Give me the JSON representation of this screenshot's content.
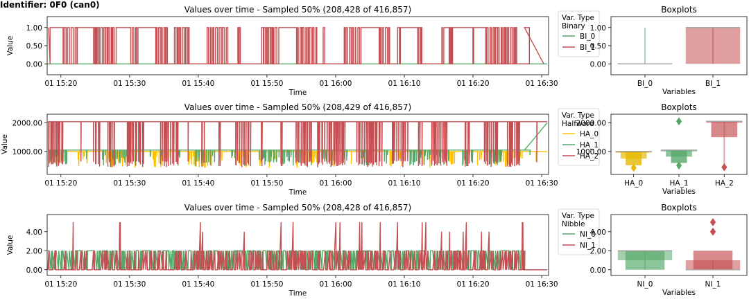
{
  "identifier": "Identifier: 0F0 (can0)",
  "colors": {
    "green": "#55a868",
    "red": "#c44e52",
    "yellow": "#ffc000",
    "median": "#a6a6a6",
    "axis": "#000000"
  },
  "chart_data": [
    {
      "type": "line",
      "title": "Values over time - Sampled 50% (208,428 of 416,857)",
      "xlabel": "Time",
      "ylabel": "Value",
      "x_ticks": [
        "01 15:20",
        "01 15:30",
        "01 15:40",
        "01 15:50",
        "01 16:00",
        "01 16:10",
        "01 16:20",
        "01 16:30"
      ],
      "x_range": [
        "01 15:18",
        "01 16:31"
      ],
      "ylim": [
        -0.3,
        1.3
      ],
      "y_ticks": [
        0,
        0.5,
        1
      ],
      "y_tick_labels": [
        "0.00",
        "0.50",
        "1.00"
      ],
      "legend": {
        "title": "Var. Type\nBinary",
        "position": "right-outside"
      },
      "series": [
        {
          "name": "BI_0",
          "color": "#55a868",
          "pattern": "flat",
          "base": 0,
          "end_value": 0
        },
        {
          "name": "BI_1",
          "color": "#c44e52",
          "pattern": "binary-toggle",
          "low": 0,
          "high": 1,
          "end_value": 0
        }
      ]
    },
    {
      "type": "line",
      "title": "Values over time - Sampled 50% (208,429 of 416,857)",
      "xlabel": "Time",
      "ylabel": "Value",
      "x_ticks": [
        "01 15:20",
        "01 15:30",
        "01 15:40",
        "01 15:50",
        "01 16:00",
        "01 16:10",
        "01 16:20",
        "01 16:30"
      ],
      "x_range": [
        "01 15:18",
        "01 16:31"
      ],
      "ylim": [
        200,
        2300
      ],
      "y_ticks": [
        1000,
        2000
      ],
      "y_tick_labels": [
        "1000.00",
        "2000.00"
      ],
      "legend": {
        "title": "Var. Type\nHalfword",
        "position": "right-outside"
      },
      "series": [
        {
          "name": "HA_0",
          "color": "#ffc000",
          "pattern": "dips",
          "base": 1000,
          "low": 430,
          "end_value": 1000
        },
        {
          "name": "HA_1",
          "color": "#55a868",
          "pattern": "dips",
          "base": 1050,
          "low": 480,
          "end_value": 2000
        },
        {
          "name": "HA_2",
          "color": "#c44e52",
          "pattern": "spikes",
          "base": 2040,
          "low": 450,
          "end_value": 2040
        }
      ]
    },
    {
      "type": "line",
      "title": "Values over time - Sampled 50% (208,428 of 416,857)",
      "xlabel": "Time",
      "ylabel": "Value",
      "x_ticks": [
        "01 15:20",
        "01 15:30",
        "01 15:40",
        "01 15:50",
        "01 16:00",
        "01 16:10",
        "01 16:20",
        "01 16:30"
      ],
      "x_range": [
        "01 15:18",
        "01 16:31"
      ],
      "ylim": [
        -0.6,
        5.8
      ],
      "y_ticks": [
        0,
        2,
        4
      ],
      "y_tick_labels": [
        "0.00",
        "2.00",
        "4.00"
      ],
      "legend": {
        "title": "Var. Type\nNibble",
        "position": "right-outside"
      },
      "series": [
        {
          "name": "NI_0",
          "color": "#55a868",
          "pattern": "levels",
          "base": 2,
          "low": 0,
          "end_value": 0
        },
        {
          "name": "NI_1",
          "color": "#c44e52",
          "pattern": "levels-spikes",
          "base": 0,
          "high": 2,
          "peak": 5,
          "end_value": 0
        }
      ]
    },
    {
      "type": "boxen",
      "title": "Boxplots",
      "xlabel": "Variables",
      "categories": [
        "BI_0",
        "BI_1"
      ],
      "ylim": [
        -0.3,
        1.3
      ],
      "y_ticks": [
        0,
        0.5,
        1
      ],
      "y_tick_labels": [
        "0.00",
        "0.50",
        "1.00"
      ],
      "boxes": [
        {
          "name": "BI_0",
          "color": "#55a868",
          "median": 0,
          "whisker_low": 0,
          "whisker_high": 1,
          "levels": [],
          "outliers": []
        },
        {
          "name": "BI_1",
          "color": "#c44e52",
          "median": 1,
          "whisker_low": 0,
          "whisker_high": 1,
          "levels": [
            [
              0,
              1
            ]
          ],
          "outliers": []
        }
      ]
    },
    {
      "type": "boxen",
      "title": "Boxplots",
      "xlabel": "Variables",
      "categories": [
        "HA_0",
        "HA_1",
        "HA_2"
      ],
      "ylim": [
        200,
        2300
      ],
      "y_ticks": [
        1000,
        2000
      ],
      "y_tick_labels": [
        "1000.00",
        "2000.00"
      ],
      "boxes": [
        {
          "name": "HA_0",
          "color": "#e6b800",
          "median": 1000,
          "whisker_low": 1000,
          "whisker_high": 1000,
          "levels": [
            [
              1000,
              1000
            ],
            [
              750,
              1000
            ],
            [
              520,
              1000
            ]
          ],
          "outliers": [
            430
          ]
        },
        {
          "name": "HA_1",
          "color": "#55a868",
          "median": 1050,
          "whisker_low": 1000,
          "whisker_high": 1050,
          "levels": [
            [
              1000,
              1050
            ],
            [
              820,
              1050
            ],
            [
              600,
              1050
            ]
          ],
          "outliers": [
            2050,
            510
          ]
        },
        {
          "name": "HA_2",
          "color": "#c44e52",
          "median": 2050,
          "whisker_low": 470,
          "whisker_high": 2050,
          "levels": [
            [
              2000,
              2050
            ],
            [
              1500,
              2050
            ]
          ],
          "outliers": [
            450
          ]
        }
      ]
    },
    {
      "type": "boxen",
      "title": "Boxplots",
      "xlabel": "Variables",
      "categories": [
        "NI_0",
        "NI_1"
      ],
      "ylim": [
        -0.6,
        5.8
      ],
      "y_ticks": [
        0,
        2,
        4
      ],
      "y_tick_labels": [
        "0.00",
        "2.00",
        "4.00"
      ],
      "boxes": [
        {
          "name": "NI_0",
          "color": "#55a868",
          "median": 2,
          "whisker_low": 0,
          "whisker_high": 2,
          "levels": [
            [
              1,
              2
            ],
            [
              0,
              2
            ]
          ],
          "outliers": []
        },
        {
          "name": "NI_1",
          "color": "#c44e52",
          "median": 0,
          "whisker_low": 0,
          "whisker_high": 1,
          "levels": [
            [
              0,
              1
            ],
            [
              0,
              2
            ]
          ],
          "outliers": [
            4,
            5
          ]
        }
      ]
    }
  ]
}
